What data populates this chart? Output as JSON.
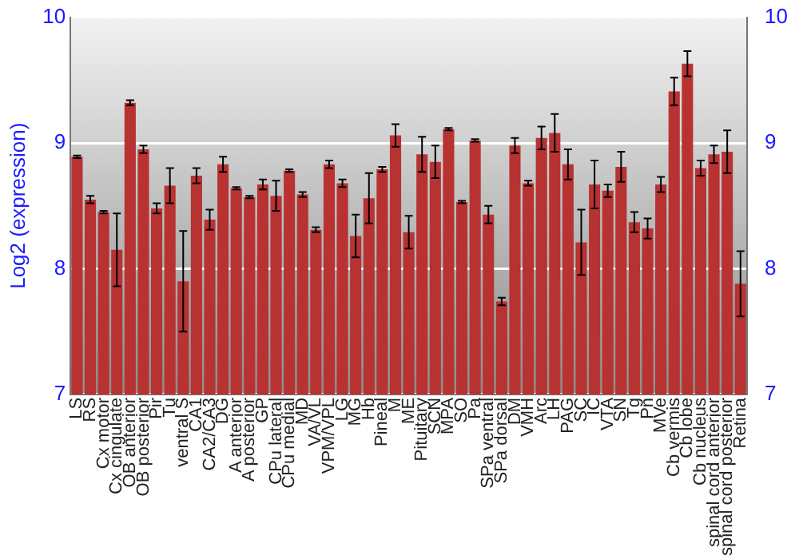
{
  "chart_data": {
    "type": "bar",
    "ylabel": "Log2 (expression)",
    "categories": [
      "LS",
      "RS",
      "Cx motor",
      "Cx cingulate",
      "OB anterior",
      "OB posterior",
      "Pir",
      "Tu",
      "ventral S",
      "CA1",
      "CA2/CA3",
      "DG",
      "A anterior",
      "A posterior",
      "GP",
      "CPu lateral",
      "CPu medial",
      "MD",
      "VA/VL",
      "VPM/VPL",
      "LG",
      "MG",
      "Hb",
      "Pineal",
      "M",
      "ME",
      "Pituitary",
      "SCN",
      "MPA",
      "SO",
      "Pa",
      "SPa ventral",
      "SPa dorsal",
      "DM",
      "VMH",
      "Arc",
      "LH",
      "PAG",
      "SC",
      "IC",
      "VTA",
      "SN",
      "Tg",
      "Pn",
      "MVe",
      "Cb vermis",
      "Cb lobe",
      "Cb nucleus",
      "spinal cord anterior",
      "spinal cord posterior",
      "Retina"
    ],
    "values": [
      8.89,
      8.55,
      8.45,
      8.15,
      9.32,
      8.95,
      8.48,
      8.66,
      7.9,
      8.74,
      8.39,
      8.83,
      8.64,
      8.57,
      8.67,
      8.58,
      8.78,
      8.59,
      8.31,
      8.83,
      8.68,
      8.26,
      8.56,
      8.79,
      9.06,
      8.29,
      8.91,
      8.85,
      9.11,
      8.53,
      9.02,
      8.43,
      7.74,
      8.98,
      8.68,
      9.04,
      9.08,
      8.83,
      8.21,
      8.67,
      8.62,
      8.81,
      8.37,
      8.32,
      8.67,
      9.41,
      9.63,
      8.8,
      8.91,
      8.93,
      7.88
    ],
    "errors": [
      0.01,
      0.03,
      0.01,
      0.29,
      0.02,
      0.03,
      0.04,
      0.14,
      0.4,
      0.06,
      0.08,
      0.06,
      0.01,
      0.01,
      0.04,
      0.12,
      0.01,
      0.02,
      0.02,
      0.03,
      0.03,
      0.17,
      0.2,
      0.02,
      0.09,
      0.13,
      0.14,
      0.13,
      0.01,
      0.01,
      0.01,
      0.07,
      0.03,
      0.06,
      0.02,
      0.09,
      0.15,
      0.12,
      0.26,
      0.19,
      0.05,
      0.12,
      0.08,
      0.08,
      0.06,
      0.11,
      0.1,
      0.06,
      0.07,
      0.17,
      0.26
    ],
    "color": "#b83232",
    "ylim": [
      7,
      10
    ],
    "yticks": [
      7,
      8,
      9,
      10
    ],
    "y2lim": [
      7,
      10
    ],
    "y2ticks": [
      7,
      8,
      9,
      10
    ],
    "grid": "y",
    "legend": false
  }
}
